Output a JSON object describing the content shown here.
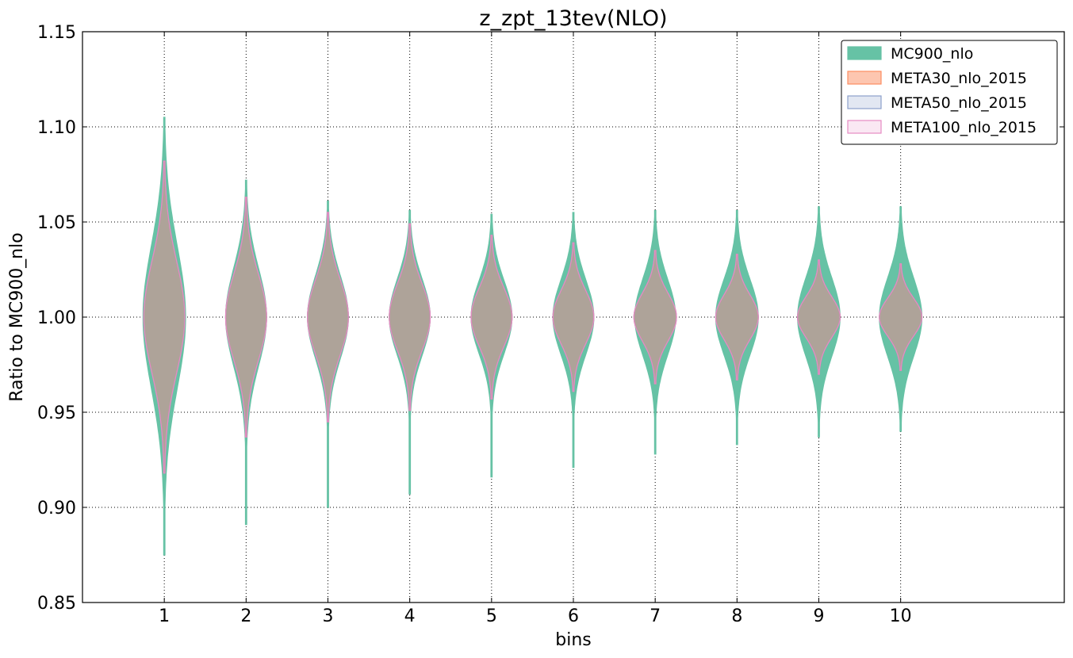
{
  "chart_data": {
    "type": "violin",
    "title": "z_zpt_13tev(NLO)",
    "xlabel": "bins",
    "ylabel": "Ratio to MC900_nlo",
    "ylim": [
      0.85,
      1.15
    ],
    "xlim": [
      0,
      12
    ],
    "yticks": [
      "0.85",
      "0.90",
      "0.95",
      "1.00",
      "1.05",
      "1.10",
      "1.15"
    ],
    "xticks": [
      "1",
      "2",
      "3",
      "4",
      "5",
      "6",
      "7",
      "8",
      "9",
      "10"
    ],
    "grid": true,
    "legend_position": "top-right",
    "categories": [
      1,
      2,
      3,
      4,
      5,
      6,
      7,
      8,
      9,
      10
    ],
    "series": [
      {
        "name": "MC900_nlo",
        "color": "#66c2a5",
        "fill_opacity": 1.0,
        "ranges": [
          [
            0.875,
            1.105
          ],
          [
            0.891,
            1.072
          ],
          [
            0.9,
            1.061
          ],
          [
            0.907,
            1.056
          ],
          [
            0.916,
            1.054
          ],
          [
            0.921,
            1.055
          ],
          [
            0.928,
            1.056
          ],
          [
            0.933,
            1.056
          ],
          [
            0.937,
            1.058
          ],
          [
            0.94,
            1.058
          ]
        ],
        "max_widths": [
          0.26,
          0.25,
          0.25,
          0.25,
          0.25,
          0.25,
          0.25,
          0.26,
          0.26,
          0.26
        ]
      },
      {
        "name": "META30_nlo_2015",
        "color": "#fc8d62",
        "fill_opacity": 0.5,
        "ranges": [
          [
            0.918,
            1.082
          ],
          [
            0.937,
            1.063
          ],
          [
            0.945,
            1.055
          ],
          [
            0.951,
            1.049
          ],
          [
            0.957,
            1.043
          ],
          [
            0.961,
            1.039
          ],
          [
            0.965,
            1.035
          ],
          [
            0.967,
            1.033
          ],
          [
            0.97,
            1.03
          ],
          [
            0.972,
            1.028
          ]
        ],
        "max_widths": [
          0.25,
          0.25,
          0.25,
          0.25,
          0.25,
          0.25,
          0.26,
          0.26,
          0.26,
          0.26
        ]
      },
      {
        "name": "META50_nlo_2015",
        "color": "#8da0cb",
        "fill_opacity": 0.25,
        "ranges": [
          [
            0.918,
            1.082
          ],
          [
            0.937,
            1.063
          ],
          [
            0.945,
            1.055
          ],
          [
            0.951,
            1.049
          ],
          [
            0.957,
            1.043
          ],
          [
            0.961,
            1.039
          ],
          [
            0.965,
            1.035
          ],
          [
            0.967,
            1.033
          ],
          [
            0.97,
            1.03
          ],
          [
            0.972,
            1.028
          ]
        ],
        "max_widths": [
          0.25,
          0.25,
          0.25,
          0.25,
          0.25,
          0.25,
          0.26,
          0.26,
          0.26,
          0.26
        ]
      },
      {
        "name": "META100_nlo_2015",
        "color": "#e78ac3",
        "fill_opacity": 0.1,
        "ranges": [
          [
            0.918,
            1.082
          ],
          [
            0.937,
            1.063
          ],
          [
            0.945,
            1.055
          ],
          [
            0.951,
            1.049
          ],
          [
            0.957,
            1.043
          ],
          [
            0.961,
            1.039
          ],
          [
            0.965,
            1.035
          ],
          [
            0.967,
            1.033
          ],
          [
            0.97,
            1.03
          ],
          [
            0.972,
            1.028
          ]
        ],
        "max_widths": [
          0.25,
          0.25,
          0.25,
          0.25,
          0.25,
          0.25,
          0.26,
          0.26,
          0.26,
          0.26
        ]
      }
    ]
  }
}
